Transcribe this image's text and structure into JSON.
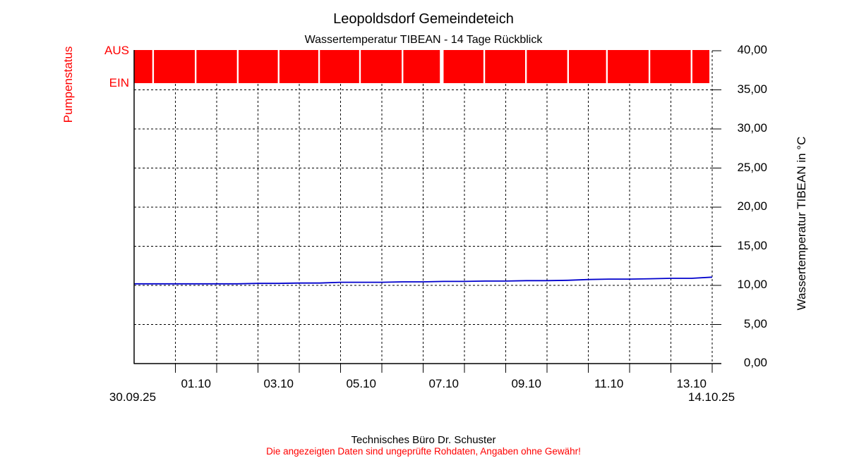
{
  "footer": {
    "company": "Technisches Büro Dr. Schuster",
    "disclaimer": "Die angezeigten Daten sind ungeprüfte Rohdaten, Angaben ohne Gewähr!",
    "disclaimer_color": "#ff0000"
  },
  "chart_data": {
    "type": "line",
    "title": "Leopoldsdorf Gemeindeteich",
    "subtitle": "Wassertemperatur TIBEAN - 14 Tage Rückblick",
    "grid": true,
    "x_axis": {
      "start_date": "30.09.25",
      "end_date": "14.10.25",
      "span_days": 14,
      "tick_interval_days": 1,
      "day_labels": [
        {
          "day_index": 1,
          "label": "01.10"
        },
        {
          "day_index": 3,
          "label": "03.10"
        },
        {
          "day_index": 5,
          "label": "05.10"
        },
        {
          "day_index": 7,
          "label": "07.10"
        },
        {
          "day_index": 9,
          "label": "09.10"
        },
        {
          "day_index": 11,
          "label": "11.10"
        },
        {
          "day_index": 13,
          "label": "13.10"
        }
      ]
    },
    "y_axis_right": {
      "label": "Wassertemperatur TIBEAN in °C",
      "min": 0,
      "max": 40,
      "step": 5,
      "tick_labels": [
        "40,00",
        "35,00",
        "30,00",
        "25,00",
        "20,00",
        "15,00",
        "10,00",
        "5,00",
        "0,00"
      ]
    },
    "y_axis_left": {
      "label": "Pumpenstatus",
      "color": "#ff0000",
      "states": [
        "AUS",
        "EIN"
      ]
    },
    "temperature_series": {
      "name": "Wassertemperatur TIBEAN",
      "unit": "°C",
      "color": "#0000cc",
      "x_days": [
        0,
        0.5,
        1,
        1.5,
        2,
        2.5,
        3,
        3.5,
        4,
        4.5,
        5,
        5.5,
        6,
        6.5,
        7,
        7.5,
        8,
        8.5,
        9,
        9.5,
        10,
        10.5,
        11,
        11.5,
        12,
        12.5,
        13,
        13.5,
        14
      ],
      "values": [
        10.2,
        10.2,
        10.2,
        10.2,
        10.2,
        10.2,
        10.25,
        10.25,
        10.3,
        10.3,
        10.4,
        10.4,
        10.4,
        10.45,
        10.45,
        10.5,
        10.5,
        10.55,
        10.55,
        10.6,
        10.6,
        10.65,
        10.75,
        10.8,
        10.8,
        10.85,
        10.9,
        10.9,
        11.05
      ]
    },
    "pump_series": {
      "name": "Pumpenstatus",
      "color": "#ff0000",
      "constant_state": "AUS",
      "default_pulse_duration_days": 0.04,
      "ein_pulses": [
        {
          "day": 0.46
        },
        {
          "day": 1.49
        },
        {
          "day": 2.51
        },
        {
          "day": 3.5
        },
        {
          "day": 4.48
        },
        {
          "day": 5.47
        },
        {
          "day": 6.5
        },
        {
          "day": 7.45,
          "duration_days": 0.09
        },
        {
          "day": 8.48
        },
        {
          "day": 9.49
        },
        {
          "day": 10.51
        },
        {
          "day": 11.45
        },
        {
          "day": 12.48
        },
        {
          "day": 13.5
        }
      ]
    }
  }
}
